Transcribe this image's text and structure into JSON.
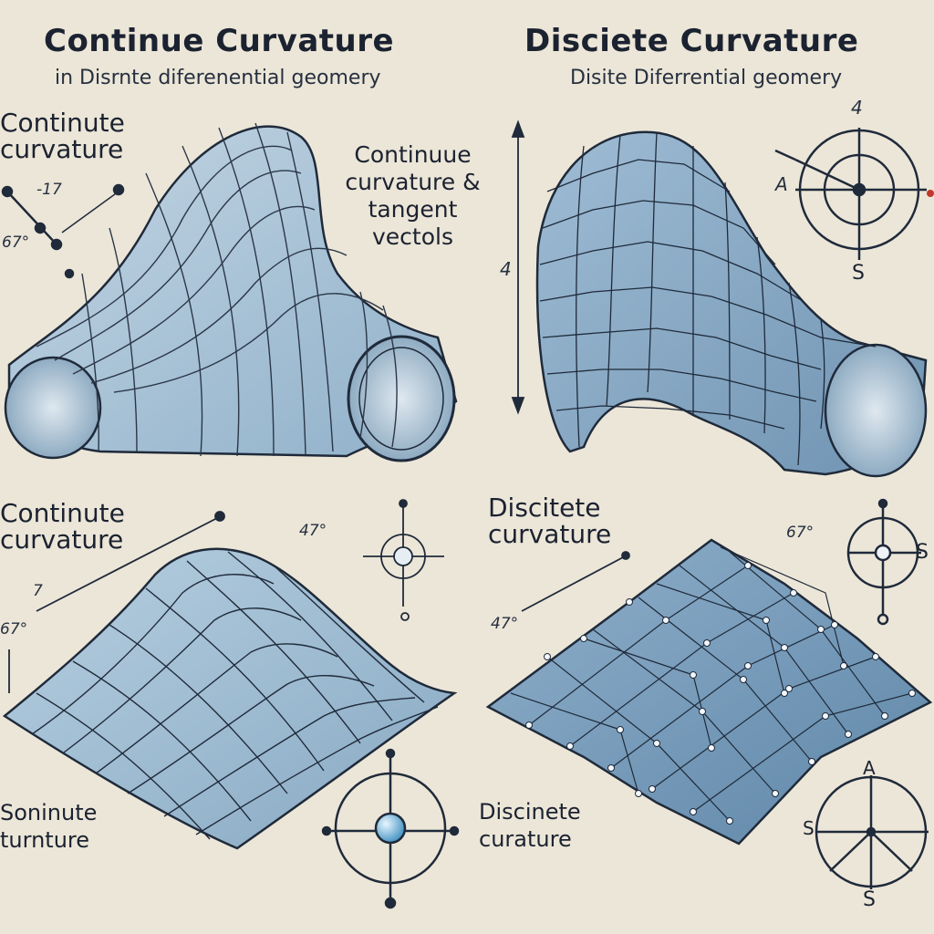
{
  "top_left": {
    "title": "Continue Curvature",
    "subtitle": "in Disrnte diferenential geomery",
    "label": "Continute curvature",
    "callout": "Continuue curvature & tangent vectols",
    "numbers": [
      "-17",
      "67°"
    ]
  },
  "top_right": {
    "title": "Disciete Curvature",
    "subtitle": "Disite Diferrential geomery",
    "axis_label": "4",
    "compass": {
      "top": "4",
      "left": "A",
      "bottom": "S"
    }
  },
  "bottom_left": {
    "label": "Continute curvature",
    "numbers": [
      "7",
      "67°",
      "47°"
    ],
    "caption": "Soninute turnture"
  },
  "bottom_right": {
    "label": "Discitete curvature",
    "numbers": [
      "67°",
      "47°"
    ],
    "compass_right": "S",
    "caption": "Discinete curature",
    "compass_bottom": {
      "top": "A",
      "left": "S",
      "bottom": "S"
    }
  },
  "colors": {
    "background": "#ece6d8",
    "surface": "#a9c4d8",
    "surface_dark": "#7d9db8",
    "outline": "#1f2a3a"
  }
}
